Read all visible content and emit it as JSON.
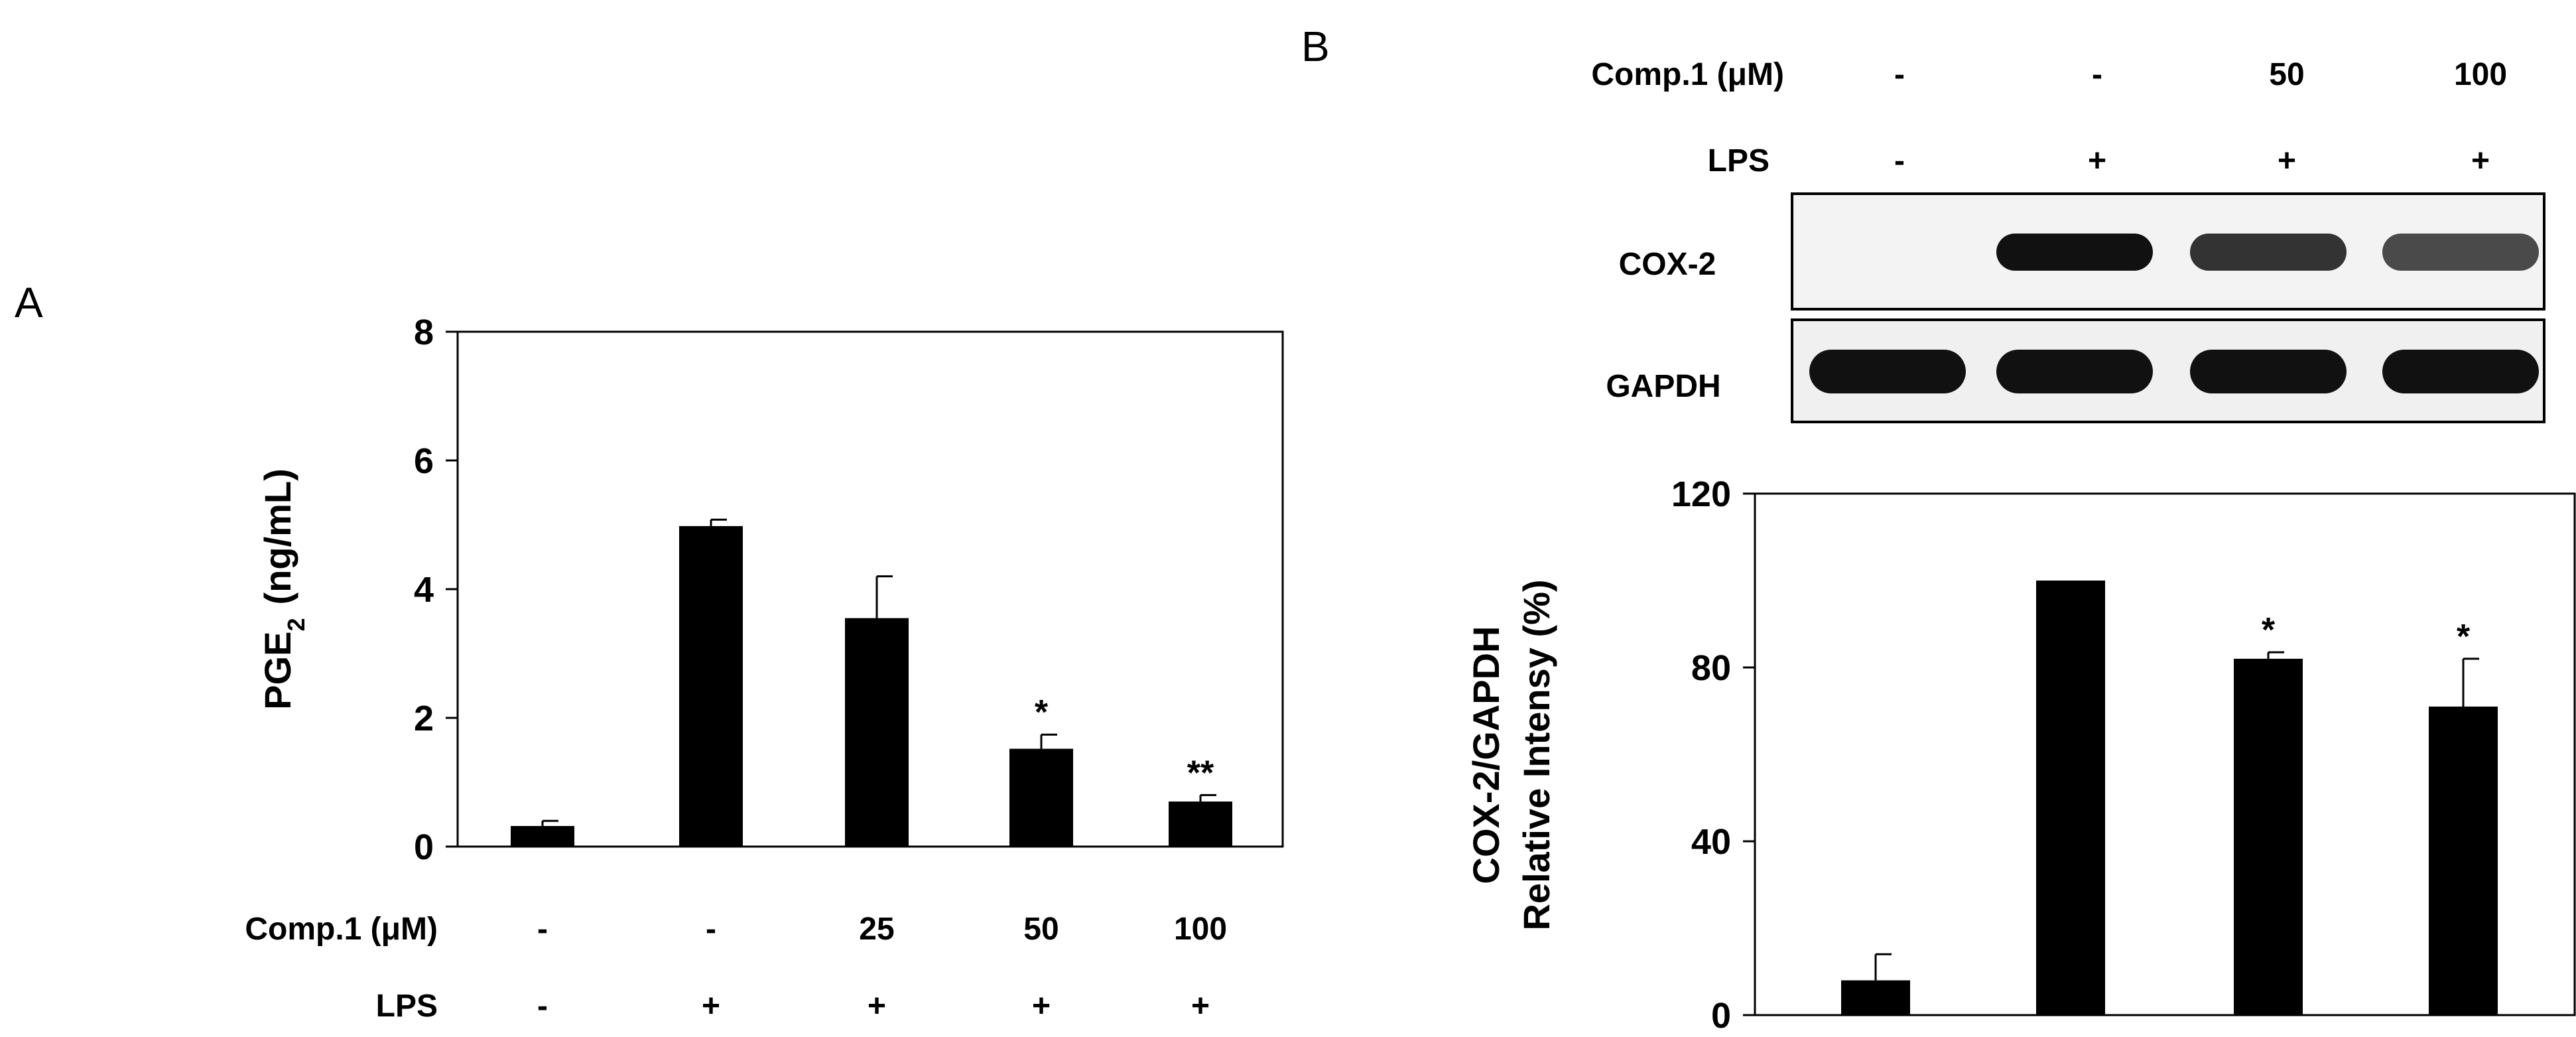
{
  "panels": {
    "a_letter": "A",
    "b_letter": "B"
  },
  "chart_data": [
    {
      "panel": "A",
      "type": "bar",
      "ylabel": "PGE2 (ng/mL)",
      "ylabel_main": "PGE",
      "ylabel_sub": "2",
      "ylabel_unit": "(ng/mL)",
      "ylim": [
        0,
        8
      ],
      "yticks": [
        "0",
        "2",
        "4",
        "6",
        "8"
      ],
      "ytick_values": [
        0,
        2,
        4,
        6,
        8
      ],
      "values": [
        0.32,
        4.98,
        3.55,
        1.52,
        0.7
      ],
      "errors": [
        0.08,
        0.1,
        0.65,
        0.22,
        0.1
      ],
      "significance": [
        "",
        "",
        "",
        "*",
        "**"
      ],
      "legend_table": {
        "row1_label": "Comp.1 (μM)",
        "row1_values": [
          "-",
          "-",
          "25",
          "50",
          "100"
        ],
        "row2_label": "LPS",
        "row2_values": [
          "-",
          "+",
          "+",
          "+",
          "+"
        ]
      },
      "bar_color": "#000000"
    },
    {
      "panel": "B",
      "type": "bar",
      "ylabel_line1": "COX-2/GAPDH",
      "ylabel_line2": "Relative Intensy (%)",
      "ylim": [
        0,
        120
      ],
      "yticks": [
        "0",
        "40",
        "80",
        "120"
      ],
      "ytick_values": [
        0,
        40,
        80,
        120
      ],
      "values": [
        8,
        100,
        82,
        71
      ],
      "errors": [
        6,
        0,
        1.5,
        11
      ],
      "significance": [
        "",
        "",
        "*",
        "*"
      ],
      "header_table": {
        "row1_label": "Comp.1 (μM)",
        "row1_values": [
          "-",
          "-",
          "50",
          "100"
        ],
        "row2_label": "LPS",
        "row2_values": [
          "-",
          "+",
          "+",
          "+"
        ]
      },
      "blot": {
        "rows": [
          {
            "label": "COX-2",
            "intensity": [
              0.0,
              1.0,
              0.85,
              0.75
            ]
          },
          {
            "label": "GAPDH",
            "intensity": [
              1.0,
              1.0,
              1.0,
              1.0
            ]
          }
        ]
      },
      "bar_color": "#000000"
    }
  ]
}
